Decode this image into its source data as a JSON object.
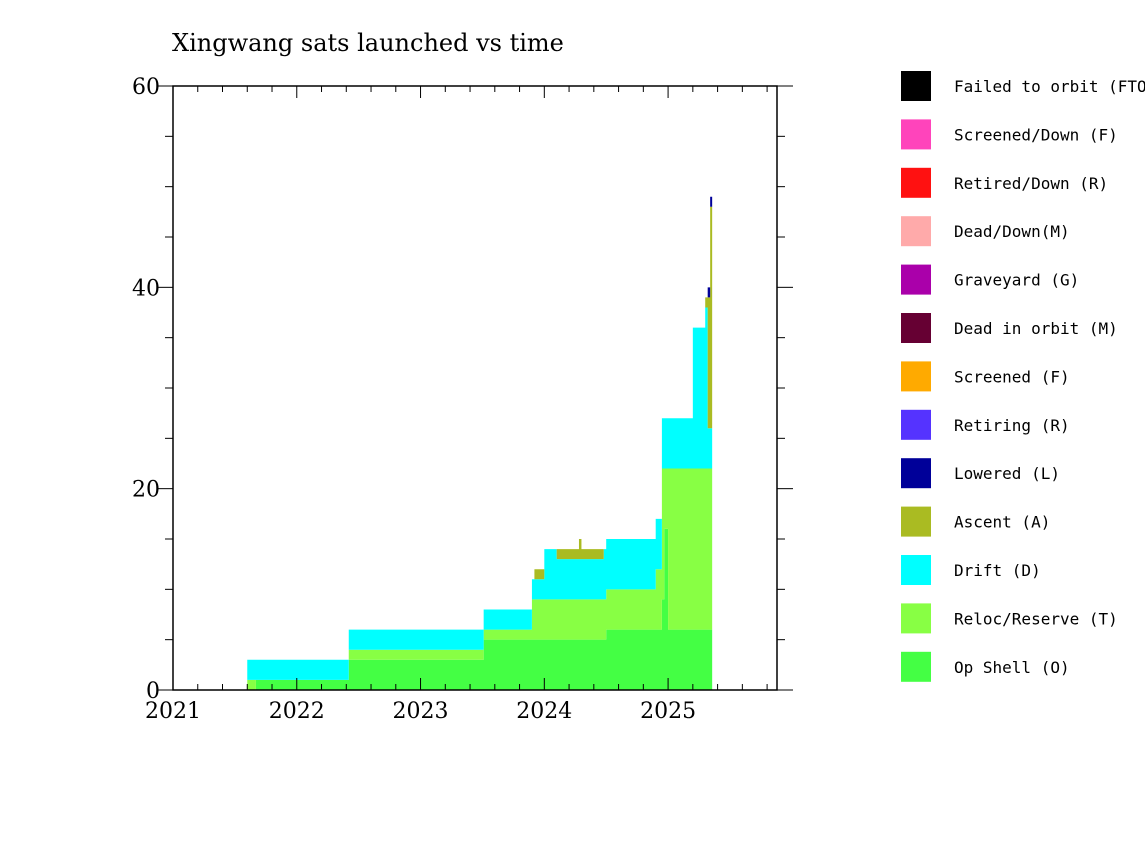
{
  "chart_data": {
    "type": "area",
    "title": "Xingwang sats launched vs time",
    "xlabel": "",
    "ylabel": "",
    "xlim": [
      2021.0,
      2025.88
    ],
    "ylim": [
      0,
      60
    ],
    "x_ticks": [
      "2021",
      "2022",
      "2023",
      "2024",
      "2025"
    ],
    "y_ticks": [
      "0",
      "20",
      "40",
      "60"
    ],
    "grid": false,
    "legend_position": "right",
    "x": [
      2021.6,
      2021.66,
      2021.67,
      2022.41,
      2022.42,
      2023.5,
      2023.51,
      2023.88,
      2023.9,
      2023.92,
      2024.0,
      2024.1,
      2024.2,
      2024.28,
      2024.3,
      2024.48,
      2024.5,
      2024.8,
      2024.9,
      2024.95,
      2024.97,
      2025.0,
      2025.1,
      2025.2,
      2025.25,
      2025.3,
      2025.32,
      2025.34
    ],
    "series": [
      {
        "name": "Op Shell (O)",
        "color": "#44ff44",
        "values": [
          0,
          0,
          1,
          1,
          3,
          3,
          5,
          5,
          5,
          5,
          5,
          5,
          5,
          5,
          5,
          5,
          6,
          6,
          6,
          9,
          16,
          6,
          6,
          6,
          6,
          6,
          6,
          6
        ]
      },
      {
        "name": "Reloc/Reserve (T)",
        "color": "#88ff44",
        "values": [
          1,
          1,
          0,
          0,
          1,
          1,
          1,
          1,
          4,
          4,
          4,
          4,
          4,
          4,
          4,
          4,
          4,
          4,
          6,
          13,
          6,
          16,
          16,
          16,
          16,
          16,
          16,
          16
        ]
      },
      {
        "name": "Drift (D)",
        "color": "#00ffff",
        "values": [
          2,
          2,
          2,
          2,
          2,
          2,
          2,
          2,
          2,
          2,
          5,
          4,
          4,
          4,
          4,
          5,
          5,
          5,
          5,
          5,
          5,
          5,
          5,
          14,
          14,
          16,
          4,
          4
        ]
      },
      {
        "name": "Ascent (A)",
        "color": "#aabb22",
        "values": [
          0,
          0,
          0,
          0,
          0,
          0,
          0,
          0,
          0,
          1,
          0,
          1,
          1,
          2,
          1,
          0,
          0,
          0,
          0,
          0,
          0,
          0,
          0,
          0,
          0,
          1,
          13,
          22
        ]
      },
      {
        "name": "Lowered (L)",
        "color": "#000099",
        "values": [
          0,
          0,
          0,
          0,
          0,
          0,
          0,
          0,
          0,
          0,
          0,
          0,
          0,
          0,
          0,
          0,
          0,
          0,
          0,
          0,
          0,
          0,
          0,
          0,
          0,
          0,
          1,
          1
        ]
      },
      {
        "name": "Retiring (R)",
        "color": "#5533ff",
        "values": [
          0,
          0,
          0,
          0,
          0,
          0,
          0,
          0,
          0,
          0,
          0,
          0,
          0,
          0,
          0,
          0,
          0,
          0,
          0,
          0,
          0,
          0,
          0,
          0,
          0,
          0,
          0,
          0
        ]
      },
      {
        "name": "Screened (F)",
        "color": "#ffaa00",
        "values": [
          0,
          0,
          0,
          0,
          0,
          0,
          0,
          0,
          0,
          0,
          0,
          0,
          0,
          0,
          0,
          0,
          0,
          0,
          0,
          0,
          0,
          0,
          0,
          0,
          0,
          0,
          0,
          0
        ]
      },
      {
        "name": "Dead in orbit (M)",
        "color": "#660033",
        "values": [
          0,
          0,
          0,
          0,
          0,
          0,
          0,
          0,
          0,
          0,
          0,
          0,
          0,
          0,
          0,
          0,
          0,
          0,
          0,
          0,
          0,
          0,
          0,
          0,
          0,
          0,
          0,
          0
        ]
      },
      {
        "name": "Graveyard (G)",
        "color": "#aa00aa",
        "values": [
          0,
          0,
          0,
          0,
          0,
          0,
          0,
          0,
          0,
          0,
          0,
          0,
          0,
          0,
          0,
          0,
          0,
          0,
          0,
          0,
          0,
          0,
          0,
          0,
          0,
          0,
          0,
          0
        ]
      },
      {
        "name": "Dead/Down(M)",
        "color": "#ffaaaa",
        "values": [
          0,
          0,
          0,
          0,
          0,
          0,
          0,
          0,
          0,
          0,
          0,
          0,
          0,
          0,
          0,
          0,
          0,
          0,
          0,
          0,
          0,
          0,
          0,
          0,
          0,
          0,
          0,
          0
        ]
      },
      {
        "name": "Retired/Down (R)",
        "color": "#ff1111",
        "values": [
          0,
          0,
          0,
          0,
          0,
          0,
          0,
          0,
          0,
          0,
          0,
          0,
          0,
          0,
          0,
          0,
          0,
          0,
          0,
          0,
          0,
          0,
          0,
          0,
          0,
          0,
          0,
          0
        ]
      },
      {
        "name": "Screened/Down (F)",
        "color": "#ff44bb",
        "values": [
          0,
          0,
          0,
          0,
          0,
          0,
          0,
          0,
          0,
          0,
          0,
          0,
          0,
          0,
          0,
          0,
          0,
          0,
          0,
          0,
          0,
          0,
          0,
          0,
          0,
          0,
          0,
          0
        ]
      },
      {
        "name": "Failed to orbit (FTO)",
        "color": "#000000",
        "values": [
          0,
          0,
          0,
          0,
          0,
          0,
          0,
          0,
          0,
          0,
          0,
          0,
          0,
          0,
          0,
          0,
          0,
          0,
          0,
          0,
          0,
          0,
          0,
          0,
          0,
          0,
          0,
          0
        ]
      }
    ],
    "legend": [
      {
        "name": "Failed to orbit (FTO)",
        "color": "#000000"
      },
      {
        "name": "Screened/Down (F)",
        "color": "#ff44bb"
      },
      {
        "name": "Retired/Down (R)",
        "color": "#ff1111"
      },
      {
        "name": "Dead/Down(M)",
        "color": "#ffaaaa"
      },
      {
        "name": "Graveyard (G)",
        "color": "#aa00aa"
      },
      {
        "name": "Dead in orbit (M)",
        "color": "#660033"
      },
      {
        "name": "Screened (F)",
        "color": "#ffaa00"
      },
      {
        "name": "Retiring (R)",
        "color": "#5533ff"
      },
      {
        "name": "Lowered (L)",
        "color": "#000099"
      },
      {
        "name": "Ascent (A)",
        "color": "#aabb22"
      },
      {
        "name": "Drift (D)",
        "color": "#00ffff"
      },
      {
        "name": "Reloc/Reserve (T)",
        "color": "#88ff44"
      },
      {
        "name": "Op Shell (O)",
        "color": "#44ff44"
      }
    ]
  }
}
